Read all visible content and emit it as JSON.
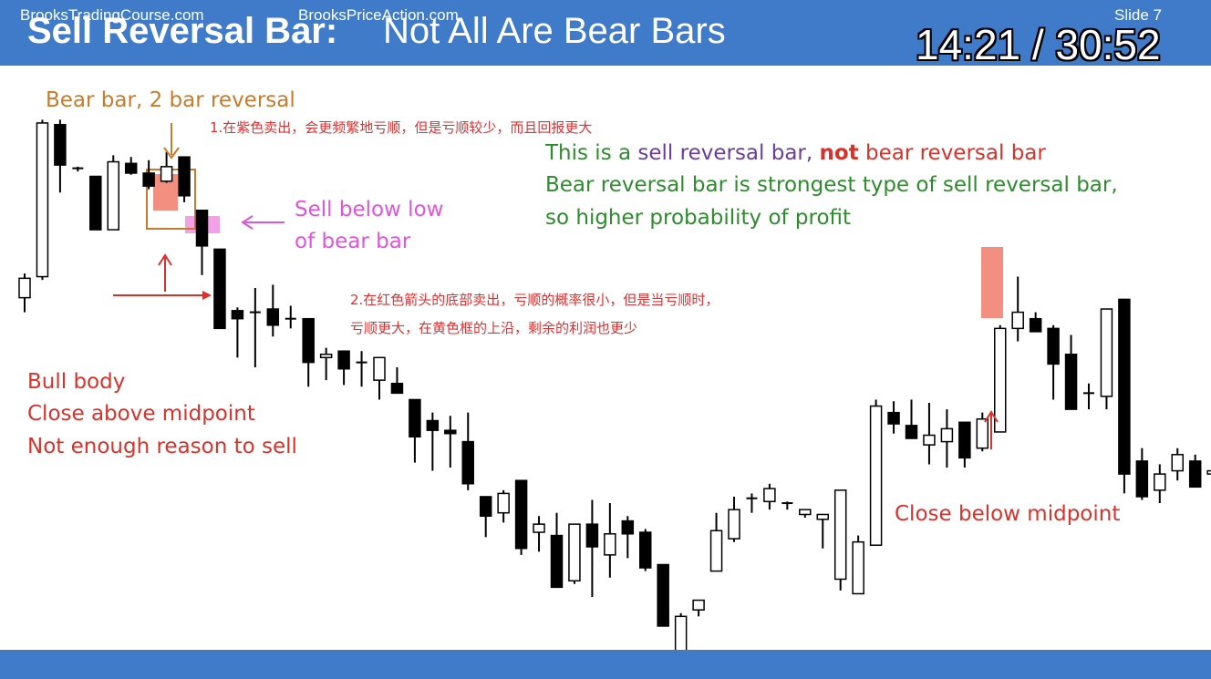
{
  "header": {
    "title_bold": "Sell Reversal Bar:",
    "title_rest": "Not All Are Bear Bars",
    "timer": "14:21 / 30:52",
    "background": "#3f7bc8"
  },
  "footer": {
    "left": "BrooksTradingCourse.com",
    "center": "BrooksPriceAction.com",
    "right": "Slide  7"
  },
  "annotations": {
    "bear_bar_label": "Bear bar, 2 bar reversal",
    "cn_note_1": "1.在紫色卖出，会更频繁地亏顺，但是亏顺较少，而且回报更大",
    "sell_below_1": "Sell below low",
    "sell_below_2": "of bear bar",
    "green_line1_a": "This is a ",
    "green_line1_b": "sell reversal bar, ",
    "green_line1_c": "not",
    "green_line1_d": " bear reversal bar",
    "green_line2": "Bear reversal bar is strongest type of sell reversal bar,",
    "green_line3": "so higher probability of profit",
    "cn_note_2a": "2.在红色箭头的底部卖出，亏顺的概率很小，但是当亏顺时，",
    "cn_note_2b": "亏顺更大，在黄色框的上沿，剩余的利润也更少",
    "bull_body_1": "Bull body",
    "bull_body_2": "Close above midpoint",
    "bull_body_3": "Not enough reason to sell",
    "close_below": "Close below midpoint"
  },
  "colors": {
    "orange": "#c97a2a",
    "magenta": "#e055d8",
    "red": "#d9322b",
    "green": "#2e8b2e",
    "purple": "#6a3d9a",
    "highlight_red": "#f28f80",
    "highlight_pink": "#f4a0e6"
  },
  "chart_data": {
    "type": "candlestick",
    "bars": [
      {
        "o": 92.5,
        "h": 100,
        "l": 88,
        "c": 98.5
      },
      {
        "o": 99,
        "h": 147.5,
        "l": 98,
        "c": 146.5
      },
      {
        "o": 146,
        "h": 147.5,
        "l": 125,
        "c": 133.5
      },
      {
        "o": 132.5,
        "h": 133,
        "l": 131.5,
        "c": 132
      },
      {
        "o": 130,
        "h": 130,
        "l": 113.5,
        "c": 113.5
      },
      {
        "o": 113.5,
        "h": 136.5,
        "l": 113.5,
        "c": 134.5
      },
      {
        "o": 134,
        "h": 136,
        "l": 130.5,
        "c": 131
      },
      {
        "o": 131,
        "h": 135,
        "l": 126,
        "c": 127
      },
      {
        "o": 128.5,
        "h": 137.5,
        "l": 128,
        "c": 133
      },
      {
        "o": 136,
        "h": 136,
        "l": 122,
        "c": 124
      },
      {
        "o": 119.5,
        "h": 119,
        "l": 99.5,
        "c": 108.5
      },
      {
        "o": 107.5,
        "h": 107.5,
        "l": 86.5,
        "c": 83
      },
      {
        "o": 88.5,
        "h": 89.5,
        "l": 74,
        "c": 86
      },
      {
        "o": 88,
        "h": 95.5,
        "l": 71,
        "c": 88
      },
      {
        "o": 89,
        "h": 96.5,
        "l": 80.5,
        "c": 84
      },
      {
        "o": 86,
        "h": 90,
        "l": 83,
        "c": 86
      },
      {
        "o": 86,
        "h": 86,
        "l": 65,
        "c": 72.5
      },
      {
        "o": 74,
        "h": 77,
        "l": 67,
        "c": 75
      },
      {
        "o": 76,
        "h": 74.5,
        "l": 65.5,
        "c": 70.5
      },
      {
        "o": 72,
        "h": 76,
        "l": 65,
        "c": 72.5
      },
      {
        "o": 67,
        "h": 74,
        "l": 61,
        "c": 74
      },
      {
        "o": 66,
        "h": 71,
        "l": 63,
        "c": 63
      },
      {
        "o": 61,
        "h": 61,
        "l": 41.5,
        "c": 49.5
      },
      {
        "o": 54.5,
        "h": 57,
        "l": 39,
        "c": 51.5
      },
      {
        "o": 51.5,
        "h": 56,
        "l": 40,
        "c": 50.5
      },
      {
        "o": 48,
        "h": 57,
        "l": 33,
        "c": 35
      },
      {
        "o": 31,
        "h": 18.5,
        "l": 18.5,
        "c": 25
      },
      {
        "o": 26,
        "h": 33,
        "l": 23,
        "c": 32
      },
      {
        "o": 36,
        "h": 32,
        "l": 13,
        "c": 15
      },
      {
        "o": 20,
        "h": 25,
        "l": 14,
        "c": 22.5
      },
      {
        "o": 19,
        "h": 26,
        "l": 3,
        "c": 3
      },
      {
        "o": 5,
        "h": 22,
        "l": 4,
        "c": 22.5
      },
      {
        "o": 22.5,
        "h": 30,
        "l": 0,
        "c": 15.5
      },
      {
        "o": 13,
        "h": 29,
        "l": 6,
        "c": 19.5
      },
      {
        "o": 23.5,
        "h": 25,
        "l": 12,
        "c": 19.5
      },
      {
        "o": 20,
        "h": 21,
        "l": 8,
        "c": 9
      },
      {
        "o": 10,
        "h": 10,
        "l": -9,
        "c": -9
      },
      {
        "o": -18,
        "h": -5,
        "l": -20,
        "c": -6
      },
      {
        "o": -4,
        "h": -2,
        "l": -6,
        "c": -1
      },
      {
        "o": 8,
        "h": 26,
        "l": 9,
        "c": 20.5
      },
      {
        "o": 18,
        "h": 31,
        "l": 17,
        "c": 27
      },
      {
        "o": 30,
        "h": 32,
        "l": 26,
        "c": 30.5
      },
      {
        "o": 29.5,
        "h": 35,
        "l": 27,
        "c": 33.5
      },
      {
        "o": 28.5,
        "h": 29.5,
        "l": 27,
        "c": 29
      },
      {
        "o": 25.5,
        "h": 26,
        "l": 24.5,
        "c": 27
      },
      {
        "o": 24,
        "h": 25,
        "l": 15,
        "c": 25.5
      },
      {
        "o": 5.5,
        "h": 31.5,
        "l": 2,
        "c": 33
      },
      {
        "o": 1,
        "h": 19,
        "l": 2,
        "c": 17
      },
      {
        "o": 16,
        "h": 61,
        "l": 24.5,
        "c": 59
      },
      {
        "o": 57,
        "h": 60.5,
        "l": 50.5,
        "c": 53.5
      },
      {
        "o": 53,
        "h": 61,
        "l": 49,
        "c": 49
      },
      {
        "o": 47,
        "h": 60,
        "l": 41,
        "c": 50
      },
      {
        "o": 48,
        "h": 58,
        "l": 40,
        "c": 52
      },
      {
        "o": 54,
        "h": 53,
        "l": 40,
        "c": 43
      },
      {
        "o": 46,
        "h": 57,
        "l": 45,
        "c": 55
      },
      {
        "o": 51,
        "h": 84,
        "l": 51,
        "c": 83
      },
      {
        "o": 83,
        "h": 99,
        "l": 79,
        "c": 88
      },
      {
        "o": 86,
        "h": 88,
        "l": 82,
        "c": 82
      },
      {
        "o": 83,
        "h": 84,
        "l": 61,
        "c": 72
      },
      {
        "o": 75,
        "h": 81,
        "l": 58,
        "c": 58
      },
      {
        "o": 63,
        "h": 66,
        "l": 58,
        "c": 63
      },
      {
        "o": 62,
        "h": 89,
        "l": 58,
        "c": 89
      },
      {
        "o": 92,
        "h": 91,
        "l": 32,
        "c": 38
      },
      {
        "o": 42,
        "h": 46,
        "l": 30,
        "c": 31
      },
      {
        "o": 33,
        "h": 41,
        "l": 29,
        "c": 38
      },
      {
        "o": 39,
        "h": 46,
        "l": 36,
        "c": 44
      },
      {
        "o": 42,
        "h": 44,
        "l": 34,
        "c": 34
      },
      {
        "o": 38,
        "h": 42,
        "l": 36,
        "c": 39
      },
      {
        "o": 36,
        "h": 33,
        "l": 33,
        "c": 33
      }
    ]
  }
}
